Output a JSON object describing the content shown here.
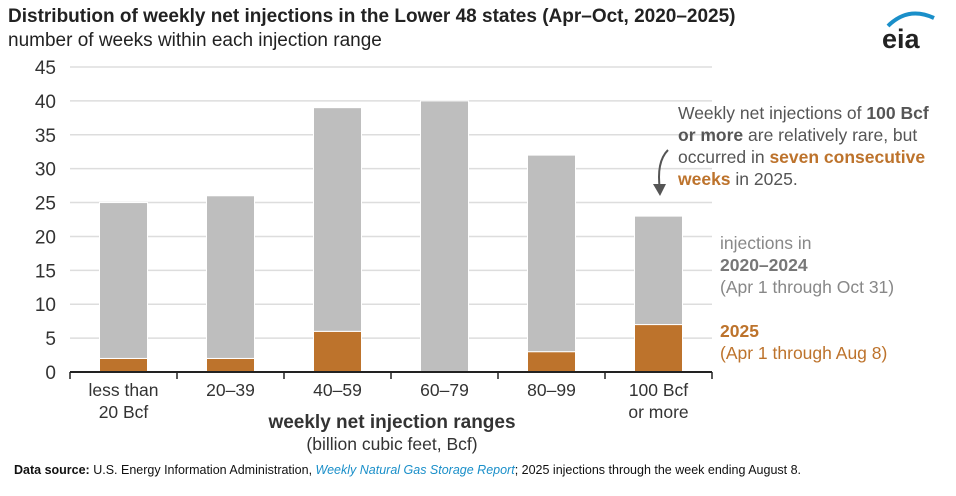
{
  "title": "Distribution of weekly net injections in the Lower 48 states (Apr–Oct, 2020–2025)",
  "subtitle": "number of weeks within each injection range",
  "logo": "eia",
  "colors": {
    "gray": "#BEBEBE",
    "orange": "#BD732C",
    "grid": "#DDDDDD"
  },
  "chart_data": {
    "type": "bar",
    "stacked": true,
    "categories": [
      [
        "less than",
        "20 Bcf"
      ],
      [
        "20–39"
      ],
      [
        "40–59"
      ],
      [
        "60–79"
      ],
      [
        "80–99"
      ],
      [
        "100 Bcf",
        "or more"
      ]
    ],
    "series": [
      {
        "name": "2025",
        "values": [
          2,
          2,
          6,
          0,
          3,
          7
        ],
        "color": "#BD732C"
      },
      {
        "name": "2020–2024",
        "values": [
          23,
          24,
          33,
          40,
          29,
          16
        ],
        "color": "#BEBEBE"
      }
    ],
    "ylim": [
      0,
      45
    ],
    "yticks": [
      0,
      5,
      10,
      15,
      20,
      25,
      30,
      35,
      40,
      45
    ],
    "grid": true,
    "xlabel": "weekly net injection ranges",
    "xlabel_sub": "(billion cubic feet, Bcf)",
    "legend_placement": "right"
  },
  "annotation": {
    "parts": [
      {
        "text": "Weekly net injections of ",
        "style": "normal"
      },
      {
        "text": "100 Bcf or more",
        "style": "bold"
      },
      {
        "text": " are relatively rare, but occurred in ",
        "style": "normal"
      },
      {
        "text": "seven consecutive weeks",
        "style": "bold-orange"
      },
      {
        "text": " in 2025.",
        "style": "normal"
      }
    ]
  },
  "legend": {
    "gray_line1": "injections in",
    "gray_line2": "2020–2024",
    "gray_line3": "(Apr 1 through Oct 31)",
    "orange_line1": "2025",
    "orange_line2": "(Apr 1 through Aug 8)"
  },
  "source": {
    "label": "Data source:",
    "text1": " U.S. Energy Information Administration, ",
    "link": "Weekly Natural Gas Storage Report",
    "text2": "; 2025 injections through the week ending August 8."
  }
}
